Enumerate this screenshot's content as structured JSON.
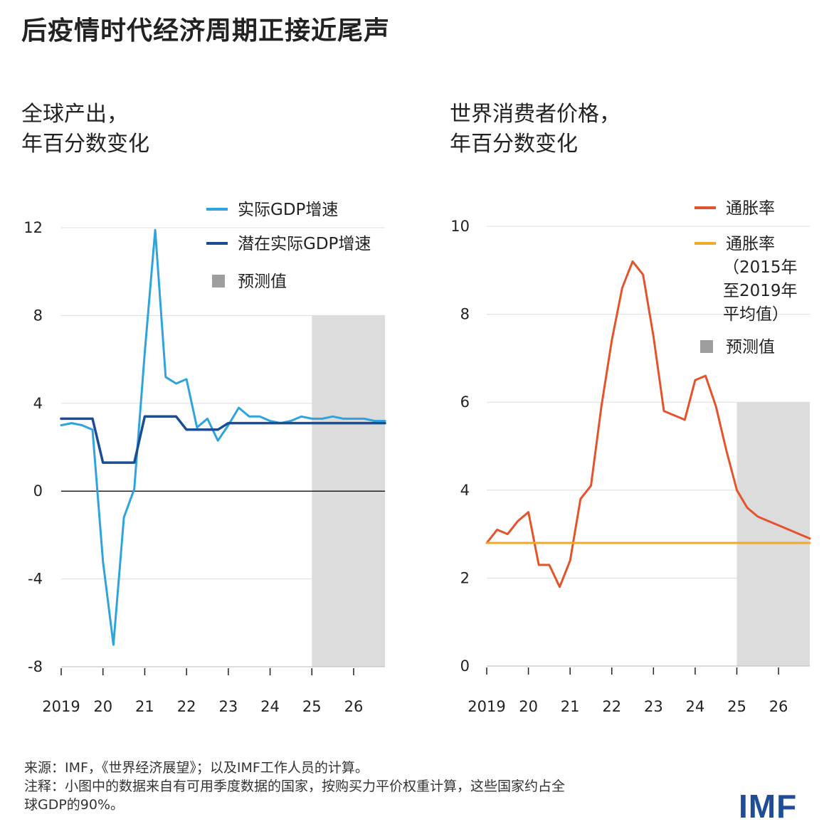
{
  "title": "后疫情时代经济周期正接近尾声",
  "source_note": "来源：IMF，《世界经济展望》；以及IMF工作人员的计算。",
  "footnote_line1": "注释：小图中的数据来自有可用季度数据的国家，按购买力平价权重计算，这些国家约占全",
  "footnote_line2": "球GDP的90%。",
  "logo": "IMF",
  "colors": {
    "actual_gdp": "#2fa3dd",
    "potential_gdp": "#1a4d94",
    "inflation": "#e5532b",
    "avg_inflation": "#f0a92a",
    "forecast": "#dcdcdc",
    "grid": "#dddddd",
    "zero": "#222222"
  },
  "chart_data": [
    {
      "type": "line",
      "title_line1": "全球产出，",
      "title_line2": "年百分数变化",
      "x_range": [
        2019,
        2026.75
      ],
      "ylim": [
        -8,
        12
      ],
      "yticks": [
        12,
        8,
        4,
        0,
        -4,
        -8
      ],
      "xtick_values": [
        2019,
        2020,
        2021,
        2022,
        2023,
        2024,
        2025,
        2026
      ],
      "xtick_labels": [
        "2019",
        "20",
        "21",
        "22",
        "23",
        "24",
        "25",
        "26"
      ],
      "forecast_start": 2025,
      "legend": [
        {
          "label": "实际GDP增速",
          "kind": "line",
          "color": "#2fa3dd"
        },
        {
          "label": "潜在实际GDP增速",
          "kind": "line",
          "color": "#1a4d94"
        },
        {
          "label": "预测值",
          "kind": "box",
          "color": "#9e9e9e"
        }
      ],
      "series": [
        {
          "name": "实际GDP增速",
          "color": "#2fa3dd",
          "width": 3,
          "x": [
            2019,
            2019.25,
            2019.5,
            2019.75,
            2020,
            2020.25,
            2020.5,
            2020.75,
            2021,
            2021.25,
            2021.5,
            2021.75,
            2022,
            2022.25,
            2022.5,
            2022.75,
            2023,
            2023.25,
            2023.5,
            2023.75,
            2024,
            2024.25,
            2024.5,
            2024.75,
            2025,
            2025.25,
            2025.5,
            2025.75,
            2026,
            2026.25,
            2026.5,
            2026.75
          ],
          "values": [
            3.0,
            3.1,
            3.0,
            2.8,
            -3.2,
            -7.0,
            -1.2,
            0.1,
            6.3,
            11.9,
            5.2,
            4.9,
            5.1,
            2.9,
            3.3,
            2.3,
            3.0,
            3.8,
            3.4,
            3.4,
            3.2,
            3.1,
            3.2,
            3.4,
            3.3,
            3.3,
            3.4,
            3.3,
            3.3,
            3.3,
            3.2,
            3.2
          ]
        },
        {
          "name": "潜在实际GDP增速",
          "color": "#1a4d94",
          "width": 3.5,
          "x": [
            2019,
            2019.75,
            2020,
            2020.75,
            2021,
            2021.75,
            2022,
            2022.75,
            2023,
            2024,
            2025,
            2026,
            2026.75
          ],
          "values": [
            3.3,
            3.3,
            1.3,
            1.3,
            3.4,
            3.4,
            2.8,
            2.8,
            3.1,
            3.1,
            3.1,
            3.1,
            3.1
          ]
        }
      ]
    },
    {
      "type": "line",
      "title_line1": "世界消费者价格，",
      "title_line2": "年百分数变化",
      "x_range": [
        2019,
        2026.75
      ],
      "ylim": [
        0,
        10
      ],
      "yticks": [
        10,
        8,
        6,
        4,
        2,
        0
      ],
      "xtick_values": [
        2019,
        2020,
        2021,
        2022,
        2023,
        2024,
        2025,
        2026
      ],
      "xtick_labels": [
        "2019",
        "20",
        "21",
        "22",
        "23",
        "24",
        "25",
        "26"
      ],
      "forecast_start": 2025,
      "forecast_top": 6,
      "legend": [
        {
          "label": "通胀率",
          "kind": "line",
          "color": "#e5532b"
        },
        {
          "label": "通胀率",
          "label2": "（2015年",
          "label3": "至2019年",
          "label4": "平均值）",
          "kind": "line",
          "color": "#f0a92a"
        },
        {
          "label": "预测值",
          "kind": "box",
          "color": "#9e9e9e"
        }
      ],
      "series": [
        {
          "name": "通胀率",
          "color": "#e5532b",
          "width": 3,
          "x": [
            2019,
            2019.25,
            2019.5,
            2019.75,
            2020,
            2020.25,
            2020.5,
            2020.75,
            2021,
            2021.25,
            2021.5,
            2021.75,
            2022,
            2022.25,
            2022.5,
            2022.75,
            2023,
            2023.25,
            2023.5,
            2023.75,
            2024,
            2024.25,
            2024.5,
            2024.75,
            2025,
            2025.25,
            2025.5,
            2025.75,
            2026,
            2026.25,
            2026.5,
            2026.75
          ],
          "values": [
            2.8,
            3.1,
            3.0,
            3.3,
            3.5,
            2.3,
            2.3,
            1.8,
            2.4,
            3.8,
            4.1,
            5.9,
            7.4,
            8.6,
            9.2,
            8.9,
            7.5,
            5.8,
            5.7,
            5.6,
            6.5,
            6.6,
            5.9,
            4.9,
            4.0,
            3.6,
            3.4,
            3.3,
            3.2,
            3.1,
            3.0,
            2.9
          ]
        },
        {
          "name": "通胀率（2015年至2019年平均值）",
          "color": "#f0a92a",
          "width": 3,
          "x": [
            2019,
            2026.75
          ],
          "values": [
            2.8,
            2.8
          ]
        }
      ]
    }
  ]
}
